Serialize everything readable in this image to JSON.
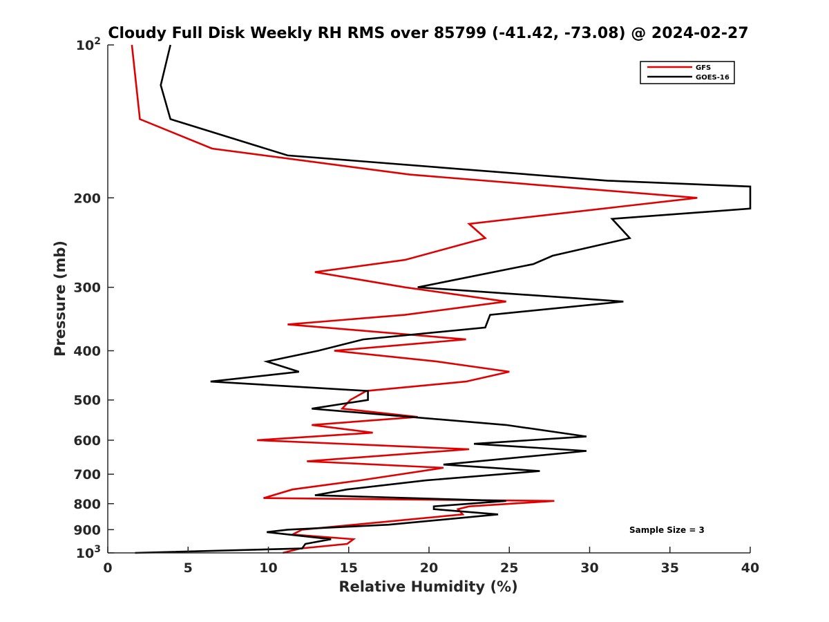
{
  "chart_data": {
    "type": "line",
    "title": "Cloudy Full Disk Weekly RH RMS over 85799 (-41.42, -73.08) @ 2024-02-27",
    "xlabel": "Relative Humidity (%)",
    "ylabel": "Pressure (mb)",
    "xlim": [
      0,
      40
    ],
    "ylim": [
      100,
      1000
    ],
    "y_scale": "log",
    "y_reversed": true,
    "grid": false,
    "legend_position": "top-right",
    "x_ticks": [
      0,
      5,
      10,
      15,
      20,
      25,
      30,
      35,
      40
    ],
    "y_ticks": [
      {
        "value": 100,
        "label": "10",
        "exp": "2"
      },
      {
        "value": 200,
        "label": "200"
      },
      {
        "value": 300,
        "label": "300"
      },
      {
        "value": 400,
        "label": "400"
      },
      {
        "value": 500,
        "label": "500"
      },
      {
        "value": 600,
        "label": "600"
      },
      {
        "value": 700,
        "label": "700"
      },
      {
        "value": 800,
        "label": "800"
      },
      {
        "value": 900,
        "label": "900"
      },
      {
        "value": 1000,
        "label": "10",
        "exp": "3"
      }
    ],
    "series": [
      {
        "name": "GFS",
        "color": "#e00000",
        "points": [
          [
            1.5,
            100
          ],
          [
            2.0,
            140
          ],
          [
            6.5,
            160
          ],
          [
            18.8,
            180
          ],
          [
            36.7,
            200
          ],
          [
            22.5,
            225
          ],
          [
            23.5,
            240
          ],
          [
            18.5,
            265
          ],
          [
            12.9,
            280
          ],
          [
            18.5,
            300
          ],
          [
            24.8,
            320
          ],
          [
            18.5,
            340
          ],
          [
            11.2,
            355
          ],
          [
            22.3,
            380
          ],
          [
            14.1,
            400
          ],
          [
            20.5,
            420
          ],
          [
            25.0,
            440
          ],
          [
            22.3,
            460
          ],
          [
            16.1,
            480
          ],
          [
            15.1,
            500
          ],
          [
            14.6,
            520
          ],
          [
            19.3,
            540
          ],
          [
            12.7,
            560
          ],
          [
            16.5,
            580
          ],
          [
            9.3,
            600
          ],
          [
            22.5,
            625
          ],
          [
            12.4,
            660
          ],
          [
            20.9,
            680
          ],
          [
            15.7,
            720
          ],
          [
            11.5,
            750
          ],
          [
            9.7,
            780
          ],
          [
            27.8,
            790
          ],
          [
            22.5,
            810
          ],
          [
            21.8,
            820
          ],
          [
            22.1,
            840
          ],
          [
            12.1,
            900
          ],
          [
            11.5,
            920
          ],
          [
            15.3,
            940
          ],
          [
            14.9,
            960
          ],
          [
            12.0,
            980
          ],
          [
            10.9,
            1000
          ]
        ]
      },
      {
        "name": "GOES-16",
        "color": "#000000",
        "points": [
          [
            3.9,
            100
          ],
          [
            3.3,
            120
          ],
          [
            3.9,
            140
          ],
          [
            11.2,
            165
          ],
          [
            31.1,
            185
          ],
          [
            40.0,
            190
          ],
          [
            40.0,
            210
          ],
          [
            31.4,
            220
          ],
          [
            32.5,
            240
          ],
          [
            27.7,
            260
          ],
          [
            26.5,
            270
          ],
          [
            19.3,
            300
          ],
          [
            32.1,
            320
          ],
          [
            23.8,
            340
          ],
          [
            23.5,
            360
          ],
          [
            15.9,
            380
          ],
          [
            13.1,
            400
          ],
          [
            9.9,
            420
          ],
          [
            11.9,
            440
          ],
          [
            6.4,
            460
          ],
          [
            16.2,
            480
          ],
          [
            16.2,
            500
          ],
          [
            12.7,
            520
          ],
          [
            24.8,
            560
          ],
          [
            29.8,
            590
          ],
          [
            22.8,
            610
          ],
          [
            29.8,
            630
          ],
          [
            20.9,
            670
          ],
          [
            26.9,
            690
          ],
          [
            19.8,
            720
          ],
          [
            14.9,
            750
          ],
          [
            12.9,
            770
          ],
          [
            24.8,
            790
          ],
          [
            20.3,
            810
          ],
          [
            20.3,
            820
          ],
          [
            24.3,
            840
          ],
          [
            17.5,
            880
          ],
          [
            11.2,
            900
          ],
          [
            9.9,
            910
          ],
          [
            13.9,
            940
          ],
          [
            12.3,
            960
          ],
          [
            12.1,
            980
          ],
          [
            1.7,
            1000
          ]
        ]
      }
    ],
    "annotations": [
      "Sample Size = 3"
    ]
  }
}
